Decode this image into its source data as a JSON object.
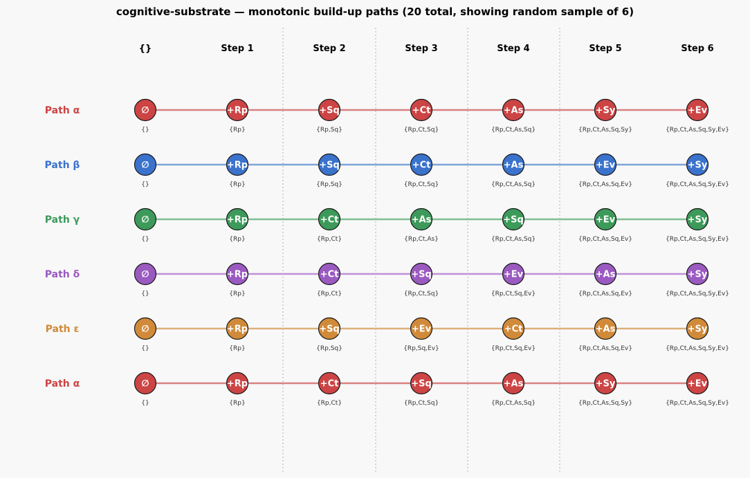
{
  "title": "cognitive-substrate — monotonic build-up paths  (20 total, showing random sample of 6)",
  "columns": [
    "{}",
    "Step 1",
    "Step 2",
    "Step 3",
    "Step 4",
    "Step 5",
    "Step 6"
  ],
  "paths": [
    {
      "label": "Path α",
      "color": "#cc4444",
      "line_color": "#d98080",
      "nodes": [
        "∅",
        "+Rp",
        "+Sq",
        "+Ct",
        "+As",
        "+Sy",
        "+Ev"
      ],
      "sets": [
        "{}",
        "{Rp}",
        "{Rp,Sq}",
        "{Rp,Ct,Sq}",
        "{Rp,Ct,As,Sq}",
        "{Rp,Ct,As,Sq,Sy}",
        "{Rp,Ct,As,Sq,Sy,Ev}"
      ]
    },
    {
      "label": "Path β",
      "color": "#3a72cc",
      "line_color": "#7da3d9",
      "nodes": [
        "∅",
        "+Rp",
        "+Sq",
        "+Ct",
        "+As",
        "+Ev",
        "+Sy"
      ],
      "sets": [
        "{}",
        "{Rp}",
        "{Rp,Sq}",
        "{Rp,Ct,Sq}",
        "{Rp,Ct,As,Sq}",
        "{Rp,Ct,As,Sq,Ev}",
        "{Rp,Ct,As,Sq,Sy,Ev}"
      ]
    },
    {
      "label": "Path γ",
      "color": "#3d9a5a",
      "line_color": "#7fbf90",
      "nodes": [
        "∅",
        "+Rp",
        "+Ct",
        "+As",
        "+Sq",
        "+Ev",
        "+Sy"
      ],
      "sets": [
        "{}",
        "{Rp}",
        "{Rp,Ct}",
        "{Rp,Ct,As}",
        "{Rp,Ct,As,Sq}",
        "{Rp,Ct,As,Sq,Ev}",
        "{Rp,Ct,As,Sq,Sy,Ev}"
      ]
    },
    {
      "label": "Path δ",
      "color": "#9a5ac0",
      "line_color": "#bf90d9",
      "nodes": [
        "∅",
        "+Rp",
        "+Ct",
        "+Sq",
        "+Ev",
        "+As",
        "+Sy"
      ],
      "sets": [
        "{}",
        "{Rp}",
        "{Rp,Ct}",
        "{Rp,Ct,Sq}",
        "{Rp,Ct,Sq,Ev}",
        "{Rp,Ct,As,Sq,Ev}",
        "{Rp,Ct,As,Sq,Sy,Ev}"
      ]
    },
    {
      "label": "Path ε",
      "color": "#d08a3a",
      "line_color": "#ddb07a",
      "nodes": [
        "∅",
        "+Rp",
        "+Sq",
        "+Ev",
        "+Ct",
        "+As",
        "+Sy"
      ],
      "sets": [
        "{}",
        "{Rp}",
        "{Rp,Sq}",
        "{Rp,Sq,Ev}",
        "{Rp,Ct,Sq,Ev}",
        "{Rp,Ct,As,Sq,Ev}",
        "{Rp,Ct,As,Sq,Sy,Ev}"
      ]
    },
    {
      "label": "Path α",
      "color": "#cc4444",
      "line_color": "#d98080",
      "nodes": [
        "∅",
        "+Rp",
        "+Ct",
        "+Sq",
        "+As",
        "+Sy",
        "+Ev"
      ],
      "sets": [
        "{}",
        "{Rp}",
        "{Rp,Ct}",
        "{Rp,Ct,Sq}",
        "{Rp,Ct,As,Sq}",
        "{Rp,Ct,As,Sq,Sy}",
        "{Rp,Ct,As,Sq,Sy,Ev}"
      ]
    }
  ]
}
